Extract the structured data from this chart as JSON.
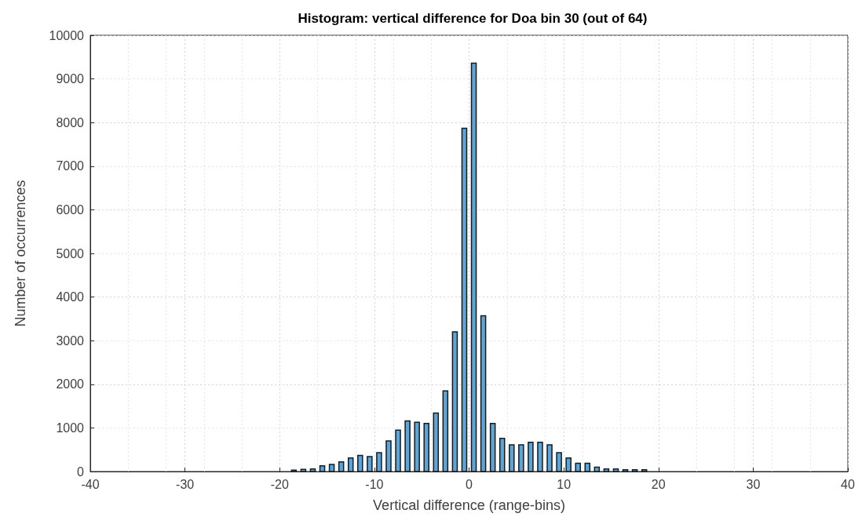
{
  "chart_data": {
    "type": "histogram",
    "title": "Histogram: vertical difference for Doa bin 30 (out of 64)",
    "xlabel": "Vertical difference (range-bins)",
    "ylabel": "Number of occurrences",
    "bins": [
      -19,
      -18,
      -17,
      -16,
      -15,
      -14,
      -13,
      -12,
      -11,
      -10,
      -9,
      -8,
      -7,
      -6,
      -5,
      -4,
      -3,
      -2,
      -1,
      0,
      1,
      2,
      3,
      4,
      5,
      6,
      7,
      8,
      9,
      10,
      11,
      12,
      13,
      14,
      15,
      16,
      17,
      18,
      19
    ],
    "values": [
      30,
      50,
      60,
      130,
      160,
      220,
      310,
      370,
      340,
      430,
      700,
      950,
      1160,
      1130,
      1100,
      1340,
      1850,
      3200,
      7870,
      9360,
      3570,
      1100,
      760,
      610,
      610,
      670,
      670,
      610,
      430,
      310,
      190,
      190,
      100,
      60,
      60,
      40,
      40,
      40
    ],
    "color": "#5aa5da",
    "xlim": [
      -40,
      40
    ],
    "xticks": [
      -40,
      -30,
      -20,
      -10,
      0,
      10,
      20,
      30,
      40
    ],
    "ylim": [
      0,
      10000
    ],
    "yticks": [
      0,
      1000,
      2000,
      3000,
      4000,
      5000,
      6000,
      7000,
      8000,
      9000,
      10000
    ],
    "grid": true
  }
}
